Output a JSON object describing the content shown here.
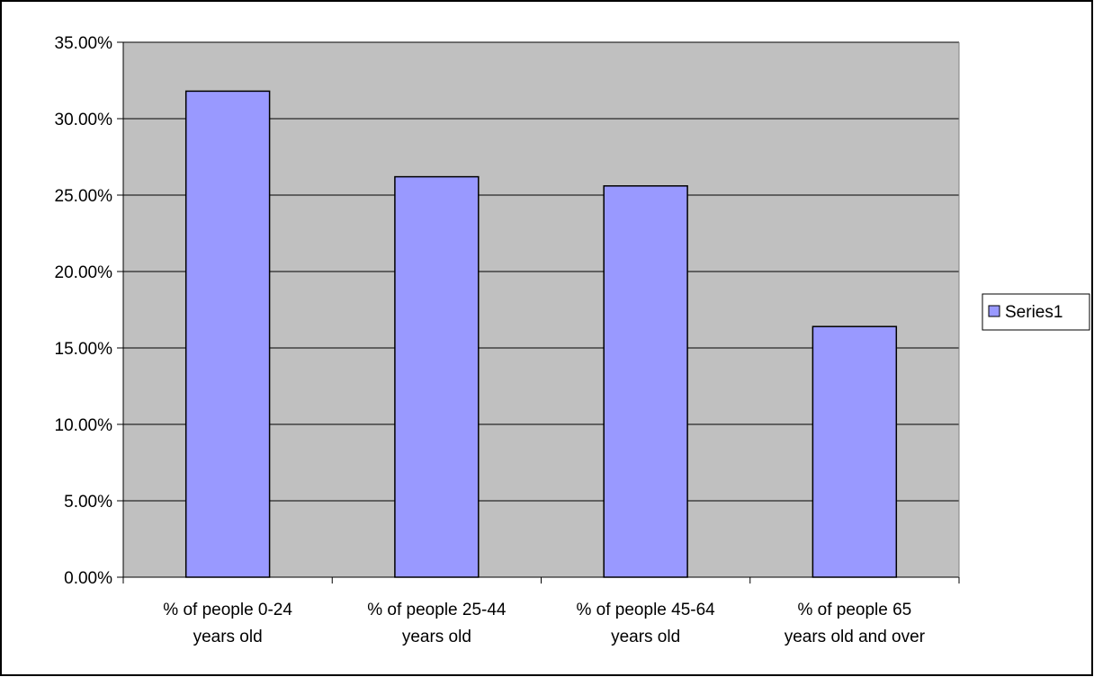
{
  "chart_data": {
    "type": "bar",
    "categories": [
      [
        "% of people 0-24",
        "years old"
      ],
      [
        "% of people 25-44",
        "years old"
      ],
      [
        "% of people 45-64",
        "years old"
      ],
      [
        "% of people 65",
        "years old and over"
      ]
    ],
    "series": [
      {
        "name": "Series1",
        "values": [
          0.318,
          0.262,
          0.256,
          0.164
        ]
      }
    ],
    "ylim": [
      0,
      0.35
    ],
    "yticks": [
      0,
      0.05,
      0.1,
      0.15,
      0.2,
      0.25,
      0.3,
      0.35
    ],
    "ytick_labels": [
      "0.00%",
      "5.00%",
      "10.00%",
      "15.00%",
      "20.00%",
      "25.00%",
      "30.00%",
      "35.00%"
    ],
    "grid": true,
    "legend_position": "right",
    "colors": {
      "plot_background": "#c0c0c0",
      "bar_fill": "#9999ff",
      "bar_stroke": "#000000",
      "gridline": "#000000",
      "frame": "#000000"
    }
  }
}
